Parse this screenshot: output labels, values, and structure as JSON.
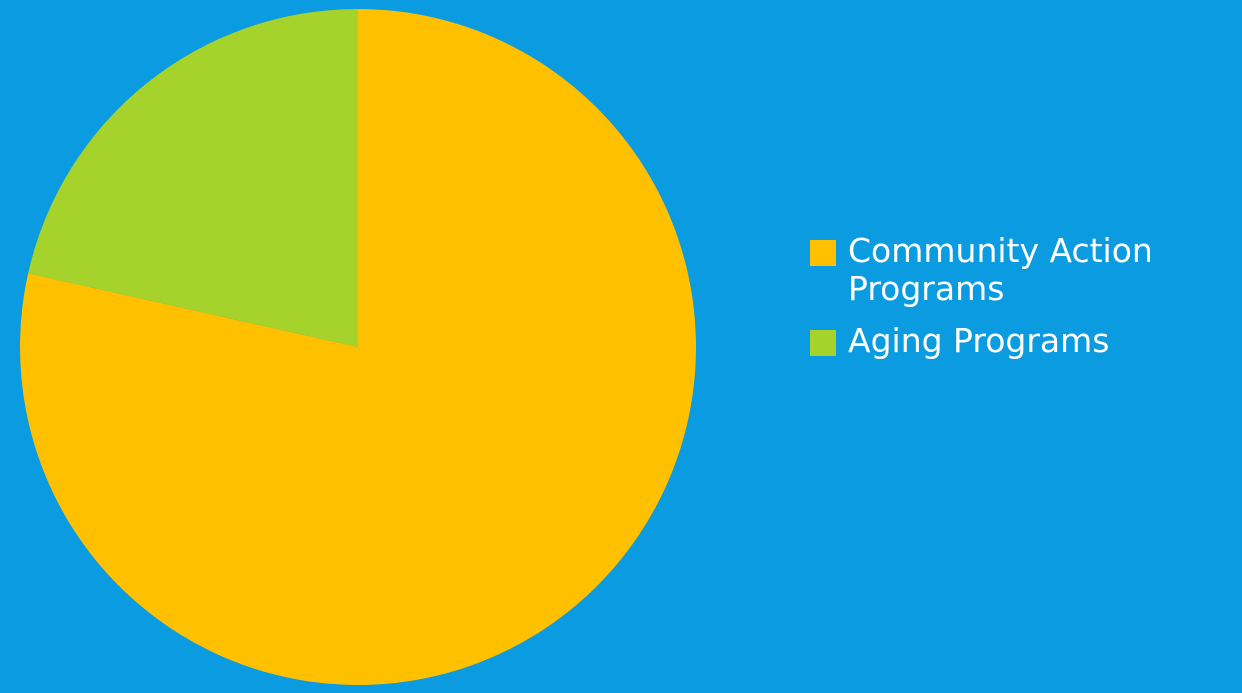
{
  "chart_data": {
    "type": "pie",
    "title": "",
    "start_angle_deg": 0,
    "direction": "clockwise",
    "legend_position": "right",
    "slices": [
      {
        "label": "Community Action Programs",
        "value": 78.5,
        "color": "#ffc000"
      },
      {
        "label": "Aging Programs",
        "value": 21.5,
        "color": "#a5d22b"
      }
    ]
  },
  "background_color": "#0b9be0"
}
